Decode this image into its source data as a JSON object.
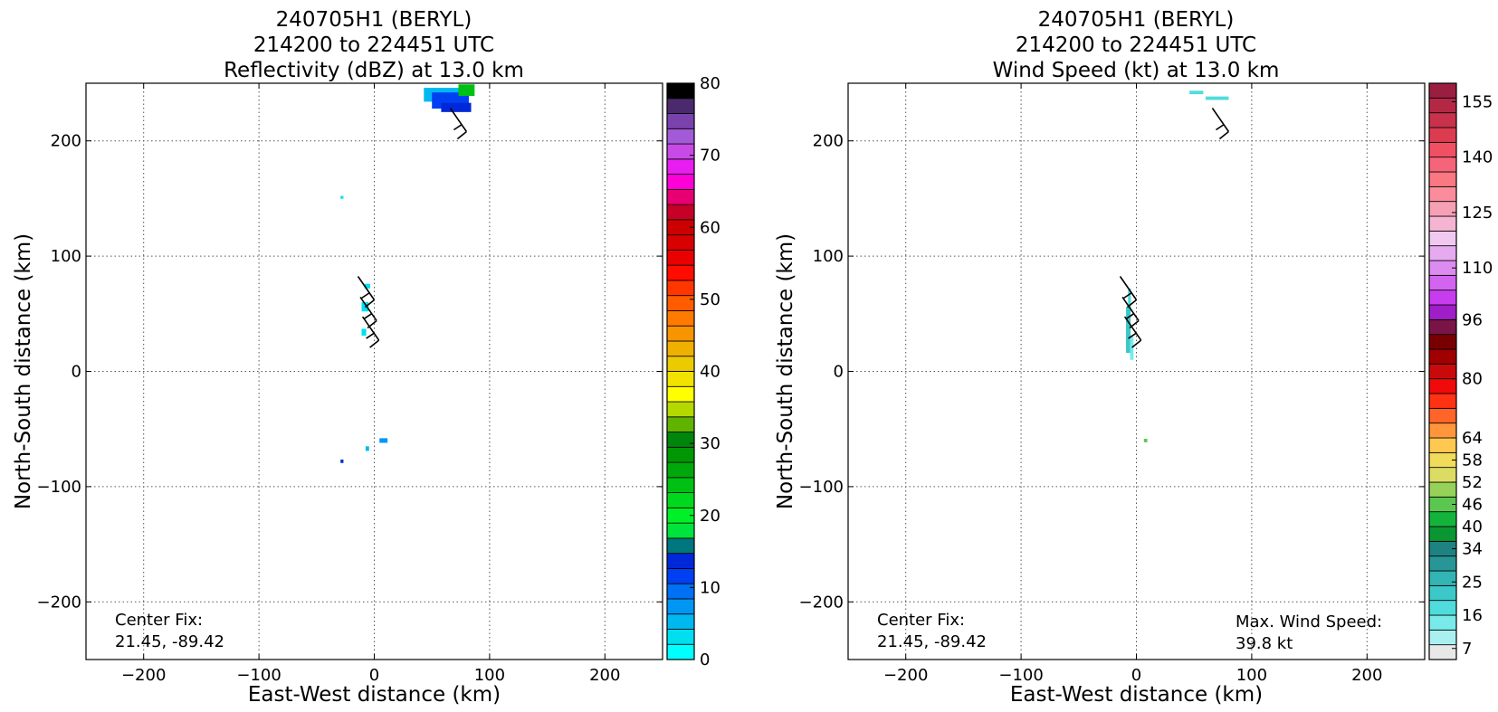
{
  "chart_data": [
    {
      "type": "heatmap",
      "title_lines": [
        "240705H1 (BERYL)",
        "214200 to 224451 UTC",
        "Reflectivity (dBZ) at 13.0 km"
      ],
      "xlabel": "East-West distance (km)",
      "ylabel": "North-South distance (km)",
      "xlim": [
        -250,
        250
      ],
      "ylim": [
        -250,
        250
      ],
      "xticks": [
        -200,
        -100,
        0,
        100,
        200
      ],
      "yticks": [
        -200,
        -100,
        0,
        100,
        200
      ],
      "xtick_labels": [
        "−200",
        "−100",
        "0",
        "100",
        "200"
      ],
      "ytick_labels": [
        "−200",
        "−100",
        "0",
        "100",
        "200"
      ],
      "grid": true,
      "annotation": {
        "label": "Center Fix:",
        "value": "21.45, -89.42"
      },
      "colorbar": {
        "min": 0,
        "max": 80,
        "tick_values": [
          0,
          10,
          20,
          30,
          40,
          50,
          60,
          70,
          80
        ],
        "tick_labels": [
          "0",
          "10",
          "20",
          "30",
          "40",
          "50",
          "60",
          "70",
          "80"
        ],
        "colors": [
          "#00ffff",
          "#00dfef",
          "#00b8f0",
          "#0096f4",
          "#0070f4",
          "#0040f2",
          "#0028d8",
          "#00767e",
          "#00e33c",
          "#00f028",
          "#00d81e",
          "#00c014",
          "#00a80c",
          "#009604",
          "#00860a",
          "#60b400",
          "#b4d800",
          "#ffff00",
          "#f2e200",
          "#ecca00",
          "#f0b000",
          "#f79400",
          "#ff7a00",
          "#ff5c00",
          "#ff3600",
          "#ff0c00",
          "#ea0000",
          "#d80000",
          "#cc0000",
          "#c60026",
          "#e80072",
          "#ff00d6",
          "#e81ef0",
          "#c84ae6",
          "#a25ad6",
          "#7a42ac",
          "#4a2a6c",
          "#000000"
        ]
      },
      "echoes": [
        {
          "x": 62,
          "y": 240,
          "value": 16,
          "color": "#00b8f0",
          "w": 38,
          "h": 12
        },
        {
          "x": 66,
          "y": 235,
          "value": 11,
          "color": "#0040f2",
          "w": 32,
          "h": 14
        },
        {
          "x": 80,
          "y": 244,
          "value": 22,
          "color": "#00c014",
          "w": 14,
          "h": 10
        },
        {
          "x": 71,
          "y": 229,
          "value": 9,
          "color": "#0028d8",
          "w": 26,
          "h": 8
        },
        {
          "x": -28,
          "y": 151,
          "value": 2,
          "color": "#00dfef",
          "w": 2.5,
          "h": 2.5
        },
        {
          "x": -6,
          "y": 74,
          "value": 2,
          "color": "#00dfef",
          "w": 5,
          "h": 4
        },
        {
          "x": -8,
          "y": 56,
          "value": 2,
          "color": "#00dfef",
          "w": 6,
          "h": 8
        },
        {
          "x": -9,
          "y": 34,
          "value": 3,
          "color": "#00dfef",
          "w": 4,
          "h": 6
        },
        {
          "x": 8,
          "y": -60,
          "value": 6,
          "color": "#0096f4",
          "w": 7,
          "h": 4
        },
        {
          "x": -6,
          "y": -67,
          "value": 4,
          "color": "#00b8f0",
          "w": 3,
          "h": 4
        },
        {
          "x": -28,
          "y": -78,
          "value": 12,
          "color": "#0028d8",
          "w": 2.5,
          "h": 3
        }
      ],
      "wind_barbs": [
        {
          "x": 80,
          "y": 208
        },
        {
          "x": 0,
          "y": 62
        },
        {
          "x": 2,
          "y": 44
        },
        {
          "x": 4,
          "y": 27
        }
      ]
    },
    {
      "type": "heatmap",
      "title_lines": [
        "240705H1 (BERYL)",
        "214200 to 224451 UTC",
        "Wind Speed (kt) at 13.0 km"
      ],
      "xlabel": "East-West distance (km)",
      "ylabel": "North-South distance (km)",
      "xlim": [
        -250,
        250
      ],
      "ylim": [
        -250,
        250
      ],
      "xticks": [
        -200,
        -100,
        0,
        100,
        200
      ],
      "yticks": [
        -200,
        -100,
        0,
        100,
        200
      ],
      "xtick_labels": [
        "−200",
        "−100",
        "0",
        "100",
        "200"
      ],
      "ytick_labels": [
        "−200",
        "−100",
        "0",
        "100",
        "200"
      ],
      "grid": true,
      "annotation": {
        "label": "Center Fix:",
        "value": "21.45, -89.42"
      },
      "annotation2": {
        "label": "Max. Wind Speed:",
        "value": "39.8 kt"
      },
      "colorbar": {
        "min": 4,
        "max": 160,
        "tick_values": [
          7,
          16,
          25,
          34,
          40,
          46,
          52,
          58,
          64,
          80,
          96,
          110,
          125,
          140,
          155
        ],
        "tick_labels": [
          "7",
          "16",
          "25",
          "34",
          "40",
          "46",
          "52",
          "58",
          "64",
          "80",
          "96",
          "110",
          "125",
          "140",
          "155"
        ],
        "colors": [
          "#e8e8e8",
          "#aaf0f0",
          "#78eaea",
          "#50dcdc",
          "#3cc8c8",
          "#32b4b4",
          "#289696",
          "#1e8282",
          "#0a9632",
          "#14b43c",
          "#5ac850",
          "#96d25a",
          "#dcdc64",
          "#f0dc5a",
          "#ffc850",
          "#ff963c",
          "#ff6428",
          "#ff3214",
          "#f00a0a",
          "#c80a0a",
          "#a00000",
          "#780000",
          "#7a1446",
          "#a01ec8",
          "#c83cf0",
          "#d264f0",
          "#dc8cf0",
          "#e6aaf0",
          "#f0c8f0",
          "#f5b4d2",
          "#f5a0b4",
          "#fa8c9b",
          "#fa7882",
          "#f56478",
          "#f05064",
          "#dc3c50",
          "#c8324b",
          "#b42846",
          "#9b1e41"
        ]
      },
      "echoes": [
        {
          "x": 52,
          "y": 242,
          "value": 16,
          "color": "#50dcdc",
          "w": 12,
          "h": 3
        },
        {
          "x": 70,
          "y": 237,
          "value": 16,
          "color": "#50dcdc",
          "w": 20,
          "h": 3
        },
        {
          "x": -6,
          "y": 62,
          "value": 16,
          "color": "#50dcdc",
          "w": 2.5,
          "h": 20
        },
        {
          "x": -7,
          "y": 36,
          "value": 20,
          "color": "#3cc8c8",
          "w": 4,
          "h": 40
        },
        {
          "x": -4,
          "y": 20,
          "value": 14,
          "color": "#78eaea",
          "w": 3,
          "h": 20
        },
        {
          "x": 8,
          "y": -60,
          "value": 38,
          "color": "#5ac850",
          "w": 3,
          "h": 3
        }
      ],
      "wind_barbs": [
        {
          "x": 80,
          "y": 208
        },
        {
          "x": 0,
          "y": 62
        },
        {
          "x": 2,
          "y": 44
        },
        {
          "x": 4,
          "y": 27
        }
      ]
    }
  ]
}
